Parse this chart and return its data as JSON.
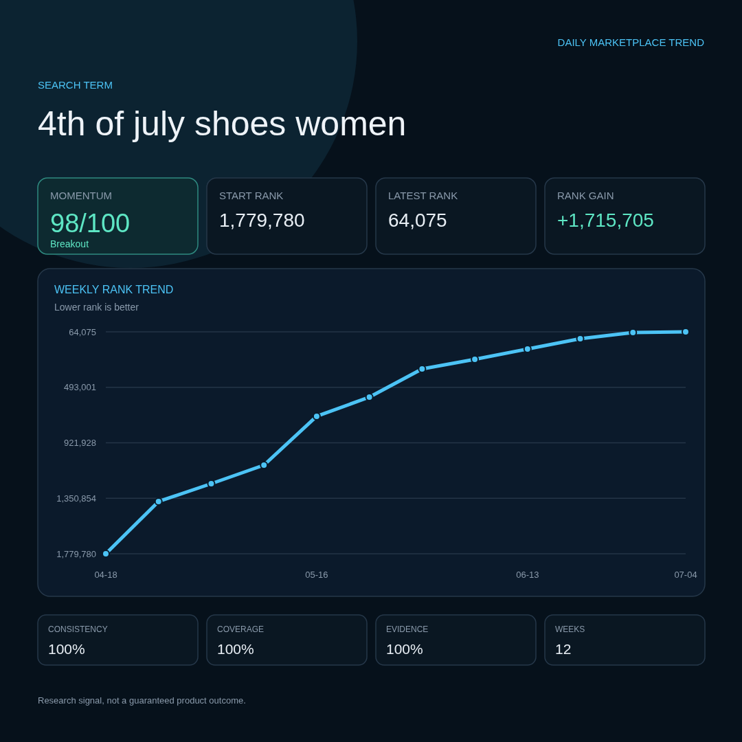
{
  "chart_data": [
    {
      "type": "other",
      "title": "4th of july shoes women",
      "subtitle": "SEARCH TERM",
      "annotations": [
        "DAILY MARKETPLACE TREND",
        "MOMENTUM",
        "98/100",
        "Breakout",
        "START RANK",
        "1,779,780",
        "LATEST RANK",
        "64,075",
        "RANK GAIN",
        "+1,715,705",
        "CONSISTENCY",
        "100%",
        "COVERAGE",
        "100%",
        "EVIDENCE",
        "100%",
        "WEEKS",
        "12",
        "Research signal, not a guaranteed product outcome."
      ]
    },
    {
      "type": "line",
      "title": "WEEKLY RANK TREND",
      "subtitle": "Lower rank is better",
      "categories": [
        "04-18",
        null,
        null,
        null,
        "05-16",
        null,
        null,
        null,
        "06-13",
        null,
        null,
        "07-04"
      ],
      "series": [
        {
          "color": "#4cc3f5",
          "values": [
            1779780,
            1376000,
            1238000,
            1094600,
            717000,
            568700,
            351000,
            276600,
            197000,
            117000,
            69400,
            64075
          ]
        }
      ],
      "ylim": [
        1779780,
        64075
      ],
      "yticks": [
        {
          "value": 64075,
          "label": "64,075"
        },
        {
          "value": 493001,
          "label": "493,001"
        },
        {
          "value": 921928,
          "label": "921,928"
        },
        {
          "value": 1350854,
          "label": "1,350,854"
        },
        {
          "value": 1779780,
          "label": "1,779,780"
        }
      ],
      "grid": "y",
      "marker": "circle",
      "line_style": "solid"
    }
  ]
}
